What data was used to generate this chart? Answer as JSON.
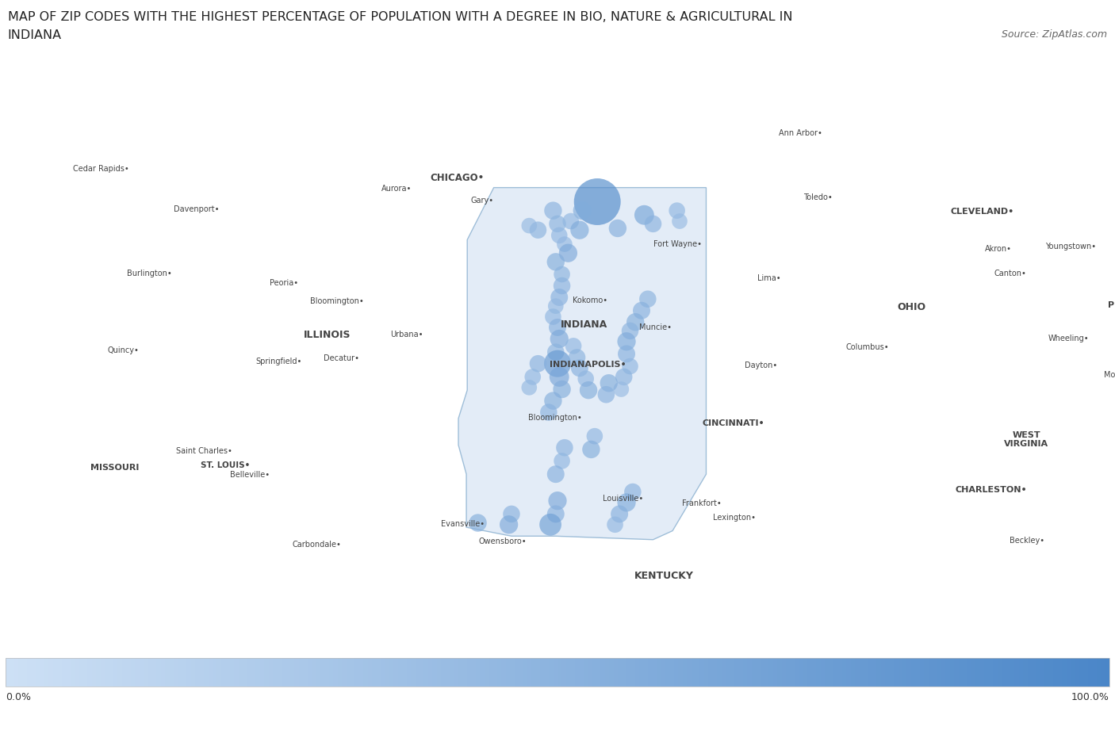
{
  "title_line1": "MAP OF ZIP CODES WITH THE HIGHEST PERCENTAGE OF POPULATION WITH A DEGREE IN BIO, NATURE & AGRICULTURAL IN",
  "title_line2": "INDIANA",
  "source": "Source: ZipAtlas.com",
  "colorbar_min_label": "0.0%",
  "colorbar_max_label": "100.0%",
  "colorbar_color_left": "#cde0f5",
  "colorbar_color_right": "#4a86c8",
  "title_fontsize": 11.5,
  "source_fontsize": 9,
  "dot_alpha": 0.65,
  "dots": [
    {
      "lon": -86.05,
      "lat": 41.6,
      "size": 1800,
      "pct": 0.95
    },
    {
      "lon": -86.22,
      "lat": 41.5,
      "size": 280,
      "pct": 0.58
    },
    {
      "lon": -86.55,
      "lat": 41.5,
      "size": 260,
      "pct": 0.52
    },
    {
      "lon": -86.5,
      "lat": 41.35,
      "size": 240,
      "pct": 0.5
    },
    {
      "lon": -86.48,
      "lat": 41.22,
      "size": 220,
      "pct": 0.47
    },
    {
      "lon": -86.42,
      "lat": 41.12,
      "size": 200,
      "pct": 0.45
    },
    {
      "lon": -86.38,
      "lat": 41.02,
      "size": 280,
      "pct": 0.62
    },
    {
      "lon": -86.52,
      "lat": 40.92,
      "size": 260,
      "pct": 0.57
    },
    {
      "lon": -86.45,
      "lat": 40.78,
      "size": 220,
      "pct": 0.5
    },
    {
      "lon": -86.45,
      "lat": 40.65,
      "size": 240,
      "pct": 0.52
    },
    {
      "lon": -86.48,
      "lat": 40.52,
      "size": 250,
      "pct": 0.54
    },
    {
      "lon": -86.52,
      "lat": 40.42,
      "size": 200,
      "pct": 0.45
    },
    {
      "lon": -86.55,
      "lat": 40.3,
      "size": 220,
      "pct": 0.47
    },
    {
      "lon": -86.5,
      "lat": 40.18,
      "size": 250,
      "pct": 0.54
    },
    {
      "lon": -86.48,
      "lat": 40.05,
      "size": 280,
      "pct": 0.62
    },
    {
      "lon": -86.52,
      "lat": 39.9,
      "size": 240,
      "pct": 0.5
    },
    {
      "lon": -86.5,
      "lat": 39.77,
      "size": 600,
      "pct": 0.8
    },
    {
      "lon": -86.48,
      "lat": 39.62,
      "size": 320,
      "pct": 0.65
    },
    {
      "lon": -86.45,
      "lat": 39.48,
      "size": 260,
      "pct": 0.57
    },
    {
      "lon": -86.5,
      "lat": 38.22,
      "size": 280,
      "pct": 0.62
    },
    {
      "lon": -86.52,
      "lat": 38.07,
      "size": 250,
      "pct": 0.54
    },
    {
      "lon": -86.58,
      "lat": 37.95,
      "size": 400,
      "pct": 0.72
    },
    {
      "lon": -86.72,
      "lat": 41.28,
      "size": 240,
      "pct": 0.5
    },
    {
      "lon": -86.82,
      "lat": 41.33,
      "size": 200,
      "pct": 0.44
    },
    {
      "lon": -86.35,
      "lat": 41.38,
      "size": 220,
      "pct": 0.47
    },
    {
      "lon": -86.25,
      "lat": 41.28,
      "size": 280,
      "pct": 0.6
    },
    {
      "lon": -85.82,
      "lat": 41.3,
      "size": 260,
      "pct": 0.56
    },
    {
      "lon": -85.52,
      "lat": 41.45,
      "size": 320,
      "pct": 0.67
    },
    {
      "lon": -85.42,
      "lat": 41.35,
      "size": 240,
      "pct": 0.52
    },
    {
      "lon": -85.15,
      "lat": 41.5,
      "size": 220,
      "pct": 0.47
    },
    {
      "lon": -85.12,
      "lat": 41.38,
      "size": 200,
      "pct": 0.42
    },
    {
      "lon": -85.48,
      "lat": 40.5,
      "size": 240,
      "pct": 0.5
    },
    {
      "lon": -85.55,
      "lat": 40.37,
      "size": 250,
      "pct": 0.54
    },
    {
      "lon": -85.62,
      "lat": 40.24,
      "size": 260,
      "pct": 0.57
    },
    {
      "lon": -85.68,
      "lat": 40.14,
      "size": 240,
      "pct": 0.5
    },
    {
      "lon": -85.72,
      "lat": 40.02,
      "size": 280,
      "pct": 0.6
    },
    {
      "lon": -85.72,
      "lat": 39.88,
      "size": 250,
      "pct": 0.54
    },
    {
      "lon": -85.68,
      "lat": 39.74,
      "size": 220,
      "pct": 0.47
    },
    {
      "lon": -85.75,
      "lat": 39.62,
      "size": 240,
      "pct": 0.52
    },
    {
      "lon": -85.78,
      "lat": 39.48,
      "size": 200,
      "pct": 0.42
    },
    {
      "lon": -85.65,
      "lat": 38.32,
      "size": 240,
      "pct": 0.52
    },
    {
      "lon": -85.72,
      "lat": 38.2,
      "size": 280,
      "pct": 0.6
    },
    {
      "lon": -85.8,
      "lat": 38.07,
      "size": 250,
      "pct": 0.54
    },
    {
      "lon": -85.85,
      "lat": 37.95,
      "size": 220,
      "pct": 0.47
    },
    {
      "lon": -86.72,
      "lat": 39.77,
      "size": 240,
      "pct": 0.52
    },
    {
      "lon": -86.78,
      "lat": 39.62,
      "size": 220,
      "pct": 0.47
    },
    {
      "lon": -86.82,
      "lat": 39.5,
      "size": 200,
      "pct": 0.44
    },
    {
      "lon": -87.02,
      "lat": 38.07,
      "size": 240,
      "pct": 0.52
    },
    {
      "lon": -87.05,
      "lat": 37.95,
      "size": 280,
      "pct": 0.62
    },
    {
      "lon": -86.32,
      "lat": 39.97,
      "size": 220,
      "pct": 0.47
    },
    {
      "lon": -86.28,
      "lat": 39.84,
      "size": 240,
      "pct": 0.5
    },
    {
      "lon": -86.25,
      "lat": 39.72,
      "size": 250,
      "pct": 0.54
    },
    {
      "lon": -86.18,
      "lat": 39.6,
      "size": 220,
      "pct": 0.47
    },
    {
      "lon": -86.15,
      "lat": 39.47,
      "size": 260,
      "pct": 0.57
    },
    {
      "lon": -86.42,
      "lat": 38.82,
      "size": 240,
      "pct": 0.52
    },
    {
      "lon": -86.45,
      "lat": 38.67,
      "size": 220,
      "pct": 0.47
    },
    {
      "lon": -86.52,
      "lat": 38.52,
      "size": 250,
      "pct": 0.54
    },
    {
      "lon": -86.55,
      "lat": 39.35,
      "size": 260,
      "pct": 0.57
    },
    {
      "lon": -86.6,
      "lat": 39.22,
      "size": 240,
      "pct": 0.52
    },
    {
      "lon": -85.92,
      "lat": 39.55,
      "size": 260,
      "pct": 0.57
    },
    {
      "lon": -85.95,
      "lat": 39.42,
      "size": 240,
      "pct": 0.52
    },
    {
      "lon": -86.08,
      "lat": 38.95,
      "size": 220,
      "pct": 0.47
    },
    {
      "lon": -86.12,
      "lat": 38.8,
      "size": 260,
      "pct": 0.57
    },
    {
      "lon": -87.4,
      "lat": 37.97,
      "size": 260,
      "pct": 0.57
    }
  ],
  "lon_min": -92.8,
  "lon_max": -80.2,
  "lat_min": 36.7,
  "lat_max": 42.85
}
